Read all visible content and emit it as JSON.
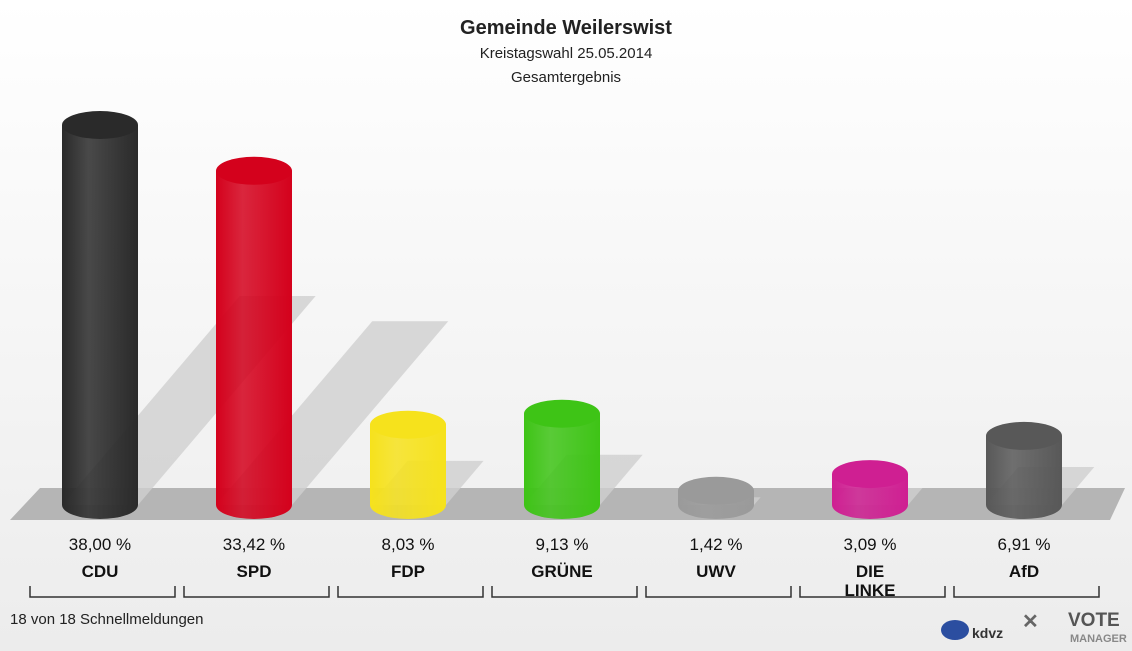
{
  "chart_data": {
    "type": "bar3d",
    "title": "Gemeinde Weilerswist",
    "subtitle": "Kreistagswahl 25.05.2014",
    "subtitle2": "Gesamtergebnis",
    "categories": [
      "CDU",
      "SPD",
      "FDP",
      "GRÜNE",
      "UWV",
      "DIE LINKE",
      "AfD"
    ],
    "values": [
      38.0,
      33.42,
      8.03,
      9.13,
      1.42,
      3.09,
      6.91
    ],
    "value_labels": [
      "38,00 %",
      "33,42 %",
      "8,03 %",
      "9,13 %",
      "1,42 %",
      "3,09 %",
      "6,91 %"
    ],
    "colors": [
      "#2a2a2a",
      "#d4011c",
      "#f6e21c",
      "#3ec416",
      "#9a9a9a",
      "#cf1f92",
      "#585858"
    ],
    "footnote": "18 von 18 Schnellmeldungen",
    "logos": [
      "kdvz",
      "VOTE",
      "MANAGER"
    ]
  }
}
